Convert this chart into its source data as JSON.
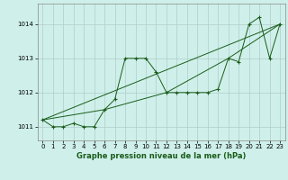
{
  "title": "Graphe pression niveau de la mer (hPa)",
  "background_color": "#cff0ea",
  "grid_color": "#b0ccc8",
  "line_color": "#1a5c1a",
  "marker": "+",
  "xlim": [
    -0.5,
    23.5
  ],
  "ylim": [
    1010.6,
    1014.6
  ],
  "yticks": [
    1011,
    1012,
    1013,
    1014
  ],
  "xticks": [
    0,
    1,
    2,
    3,
    4,
    5,
    6,
    7,
    8,
    9,
    10,
    11,
    12,
    13,
    14,
    15,
    16,
    17,
    18,
    19,
    20,
    21,
    22,
    23
  ],
  "series": [
    [
      0,
      1011.2
    ],
    [
      1,
      1011.0
    ],
    [
      2,
      1011.0
    ],
    [
      3,
      1011.1
    ],
    [
      4,
      1011.0
    ],
    [
      5,
      1011.0
    ],
    [
      6,
      1011.5
    ],
    [
      7,
      1011.8
    ],
    [
      8,
      1013.0
    ],
    [
      9,
      1013.0
    ],
    [
      10,
      1013.0
    ],
    [
      11,
      1012.6
    ],
    [
      12,
      1012.0
    ],
    [
      13,
      1012.0
    ],
    [
      14,
      1012.0
    ],
    [
      15,
      1012.0
    ],
    [
      16,
      1012.0
    ],
    [
      17,
      1012.1
    ],
    [
      18,
      1013.0
    ],
    [
      19,
      1012.9
    ],
    [
      20,
      1014.0
    ],
    [
      21,
      1014.2
    ],
    [
      22,
      1013.0
    ],
    [
      23,
      1014.0
    ]
  ],
  "series2": [
    [
      0,
      1011.2
    ],
    [
      23,
      1014.0
    ]
  ],
  "series3": [
    [
      0,
      1011.2
    ],
    [
      6,
      1011.5
    ],
    [
      12,
      1012.0
    ],
    [
      18,
      1013.0
    ],
    [
      23,
      1014.0
    ]
  ],
  "title_fontsize": 6,
  "tick_fontsize": 5
}
